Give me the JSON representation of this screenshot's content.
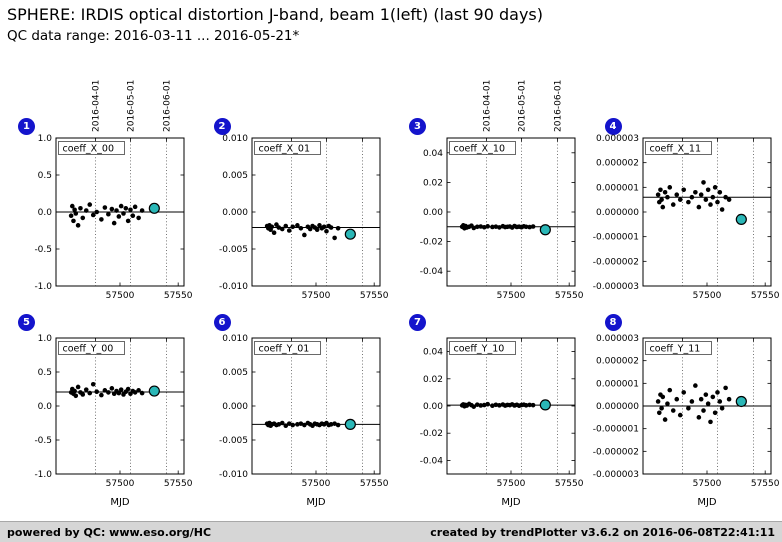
{
  "header": {
    "title": "SPHERE: IRDIS optical distortion J-band, beam 1(left) (last 90 days)",
    "subtitle": "QC data range: 2016-03-11 ... 2016-05-21*"
  },
  "footer": {
    "left": "powered by QC: www.eso.org/HC",
    "right": "created by trendPlotter v3.6.2 on 2016-06-08T22:41:11"
  },
  "colors": {
    "badge": "#1414cc",
    "highlight_fill": "#2ab7b7",
    "point": "#000000",
    "mean_line": "#000000",
    "footer_bg": "#d6d6d6"
  },
  "chart_data": {
    "type": "scatter",
    "xlabel": "MJD",
    "xlim": [
      57445,
      57555
    ],
    "xticks": [
      57500,
      57550
    ],
    "xtick_labels": [
      "57500",
      "57550"
    ],
    "date_marks": [
      {
        "mjd": 57479,
        "label": "2016-04-01"
      },
      {
        "mjd": 57509,
        "label": "2016-05-01"
      },
      {
        "mjd": 57540,
        "label": "2016-06-01"
      }
    ],
    "x_mjd": [
      57458,
      57459,
      57460,
      57461,
      57462,
      57464,
      57466,
      57468,
      57471,
      57474,
      57477,
      57480,
      57484,
      57487,
      57490,
      57493,
      57495,
      57497,
      57499,
      57501,
      57503,
      57505,
      57507,
      57509,
      57511,
      57513,
      57516,
      57519
    ],
    "plots": [
      {
        "index": 1,
        "label": "coeff_X_00",
        "ylim": [
          -1.0,
          1.0
        ],
        "yticks": [
          1.0,
          0.5,
          0.0,
          -0.5,
          -1.0
        ],
        "ytick_labels": [
          "1.0",
          "0.5",
          "0.0",
          "-0.5",
          "-1.0"
        ],
        "mean_line": 0.0,
        "y": [
          -0.05,
          0.08,
          -0.12,
          0.03,
          -0.02,
          -0.18,
          0.05,
          -0.08,
          0.02,
          0.1,
          -0.04,
          0.0,
          -0.1,
          0.06,
          -0.03,
          0.04,
          -0.15,
          0.02,
          -0.06,
          0.08,
          -0.02,
          0.05,
          -0.12,
          0.03,
          -0.05,
          0.07,
          -0.08,
          0.02
        ],
        "last_point": {
          "x": 57529.5,
          "y": 0.05
        },
        "show_date_labels": true,
        "show_xlabel": false
      },
      {
        "index": 2,
        "label": "coeff_X_01",
        "ylim": [
          -0.01,
          0.01
        ],
        "yticks": [
          0.01,
          0.005,
          0.0,
          -0.005,
          -0.01
        ],
        "ytick_labels": [
          "0.010",
          "0.005",
          "0.000",
          "-0.005",
          "-0.010"
        ],
        "mean_line": -0.0021,
        "y": [
          -0.0019,
          -0.0022,
          -0.0018,
          -0.0024,
          -0.002,
          -0.0028,
          -0.0017,
          -0.0021,
          -0.0023,
          -0.0019,
          -0.0025,
          -0.002,
          -0.0018,
          -0.0022,
          -0.0031,
          -0.002,
          -0.0023,
          -0.0019,
          -0.0021,
          -0.0024,
          -0.0018,
          -0.0022,
          -0.002,
          -0.0026,
          -0.0019,
          -0.0021,
          -0.0035,
          -0.0022
        ],
        "last_point": {
          "x": 57529.5,
          "y": -0.003
        },
        "show_date_labels": false,
        "show_xlabel": false
      },
      {
        "index": 3,
        "label": "coeff_X_10",
        "ylim": [
          -0.05,
          0.05
        ],
        "yticks": [
          0.04,
          0.02,
          0.0,
          -0.02,
          -0.04
        ],
        "ytick_labels": [
          "0.04",
          "0.02",
          "0.00",
          "-0.02",
          "-0.04"
        ],
        "mean_line": -0.01,
        "y": [
          -0.01,
          -0.009,
          -0.011,
          -0.0095,
          -0.0105,
          -0.01,
          -0.0092,
          -0.0108,
          -0.01,
          -0.0098,
          -0.0103,
          -0.0097,
          -0.0101,
          -0.0099,
          -0.0104,
          -0.0096,
          -0.0102,
          -0.01,
          -0.0098,
          -0.0105,
          -0.0095,
          -0.0101,
          -0.0099,
          -0.0103,
          -0.0097,
          -0.01,
          -0.0102,
          -0.0098
        ],
        "last_point": {
          "x": 57529.5,
          "y": -0.012
        },
        "show_date_labels": true,
        "show_xlabel": false
      },
      {
        "index": 4,
        "label": "coeff_X_11",
        "ylim": [
          -3e-06,
          3e-06
        ],
        "yticks": [
          3e-06,
          2e-06,
          1e-06,
          0.0,
          -1e-06,
          -2e-06,
          -3e-06
        ],
        "ytick_labels": [
          "0.000003",
          "0.000002",
          "0.000001",
          "0.000000",
          "-0.000001",
          "-0.000002",
          "-0.000003"
        ],
        "mean_line": 6e-07,
        "y": [
          7e-07,
          4e-07,
          9e-07,
          5e-07,
          2e-07,
          8e-07,
          6e-07,
          1e-06,
          3e-07,
          7e-07,
          5e-07,
          9e-07,
          4e-07,
          6e-07,
          8e-07,
          2e-07,
          7e-07,
          1.2e-06,
          5e-07,
          9e-07,
          3e-07,
          6e-07,
          1e-06,
          4e-07,
          8e-07,
          1e-07,
          6e-07,
          5e-07
        ],
        "last_point": {
          "x": 57529.5,
          "y": -3e-07
        },
        "show_date_labels": false,
        "show_xlabel": false
      },
      {
        "index": 5,
        "label": "coeff_Y_00",
        "ylim": [
          -1.0,
          1.0
        ],
        "yticks": [
          1.0,
          0.5,
          0.0,
          -0.5,
          -1.0
        ],
        "ytick_labels": [
          "1.0",
          "0.5",
          "0.0",
          "-0.5",
          "-1.0"
        ],
        "mean_line": 0.205,
        "y": [
          0.2,
          0.25,
          0.18,
          0.22,
          0.15,
          0.28,
          0.2,
          0.17,
          0.24,
          0.19,
          0.32,
          0.21,
          0.16,
          0.23,
          0.2,
          0.26,
          0.18,
          0.22,
          0.19,
          0.24,
          0.17,
          0.21,
          0.25,
          0.18,
          0.22,
          0.2,
          0.23,
          0.19
        ],
        "last_point": {
          "x": 57529.5,
          "y": 0.22
        },
        "show_date_labels": false,
        "show_xlabel": true
      },
      {
        "index": 6,
        "label": "coeff_Y_01",
        "ylim": [
          -0.01,
          0.01
        ],
        "yticks": [
          0.01,
          0.005,
          0.0,
          -0.005,
          -0.01
        ],
        "ytick_labels": [
          "0.010",
          "0.005",
          "0.000",
          "-0.005",
          "-0.010"
        ],
        "mean_line": -0.0027,
        "y": [
          -0.0026,
          -0.0028,
          -0.0025,
          -0.0029,
          -0.0027,
          -0.0026,
          -0.0028,
          -0.0027,
          -0.0025,
          -0.0029,
          -0.0026,
          -0.0028,
          -0.0027,
          -0.0026,
          -0.0028,
          -0.0025,
          -0.0027,
          -0.0029,
          -0.0026,
          -0.0027,
          -0.0028,
          -0.0026,
          -0.0027,
          -0.0025,
          -0.0028,
          -0.0027,
          -0.0026,
          -0.0028
        ],
        "last_point": {
          "x": 57529.5,
          "y": -0.0027
        },
        "show_date_labels": false,
        "show_xlabel": true
      },
      {
        "index": 7,
        "label": "coeff_Y_10",
        "ylim": [
          -0.05,
          0.05
        ],
        "yticks": [
          0.04,
          0.02,
          0.0,
          -0.02,
          -0.04
        ],
        "ytick_labels": [
          "0.04",
          "0.02",
          "0.00",
          "-0.02",
          "-0.04"
        ],
        "mean_line": 0.0006,
        "y": [
          0.0005,
          0.0012,
          -0.0002,
          0.0008,
          0.0003,
          0.0015,
          0.0006,
          -0.0005,
          0.001,
          0.0004,
          0.0007,
          0.0013,
          0.0002,
          0.0009,
          0.0005,
          0.0011,
          0.0003,
          0.0008,
          0.0006,
          0.0012,
          0.0004,
          0.0009,
          0.0002,
          0.0007,
          0.001,
          0.0005,
          0.0008,
          0.0006
        ],
        "last_point": {
          "x": 57529.5,
          "y": 0.0008
        },
        "show_date_labels": false,
        "show_xlabel": true
      },
      {
        "index": 8,
        "label": "coeff_Y_11",
        "ylim": [
          -3e-06,
          3e-06
        ],
        "yticks": [
          3e-06,
          2e-06,
          1e-06,
          0.0,
          -1e-06,
          -2e-06,
          -3e-06
        ],
        "ytick_labels": [
          "0.000003",
          "0.000002",
          "0.000001",
          "0.000000",
          "-0.000001",
          "-0.000002",
          "-0.000003"
        ],
        "mean_line": 0.0,
        "y": [
          2e-07,
          -3e-07,
          5e-07,
          -1e-07,
          4e-07,
          -6e-07,
          1e-07,
          7e-07,
          -2e-07,
          3e-07,
          -4e-07,
          6e-07,
          -1e-07,
          2e-07,
          9e-07,
          -5e-07,
          3e-07,
          -2e-07,
          5e-07,
          1e-07,
          -7e-07,
          4e-07,
          -3e-07,
          6e-07,
          2e-07,
          -1e-07,
          8e-07,
          3e-07
        ],
        "last_point": {
          "x": 57529.5,
          "y": 2e-07
        },
        "show_date_labels": false,
        "show_xlabel": true
      }
    ]
  }
}
